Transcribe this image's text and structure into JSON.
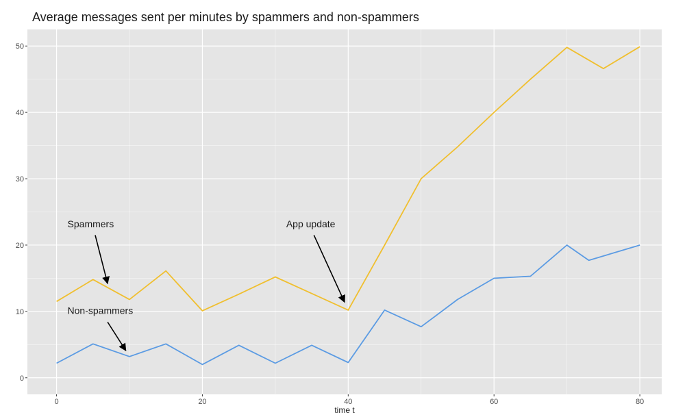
{
  "chart_data": {
    "type": "line",
    "title": "Average messages sent per minutes by spammers and non-spammers",
    "xlabel": "time t",
    "ylabel": "",
    "xlim": [
      -4,
      83
    ],
    "ylim": [
      -2.5,
      52.5
    ],
    "xticks": [
      0,
      20,
      40,
      60,
      80
    ],
    "yticks": [
      0,
      10,
      20,
      30,
      40,
      50
    ],
    "grid": true,
    "legend": "none",
    "panel_background": "#e5e5e5",
    "grid_color": "#ffffff",
    "series": [
      {
        "color": "#f0bf2f",
        "x": [
          0,
          5,
          10,
          15,
          20,
          25,
          30,
          35,
          40,
          45,
          50,
          55,
          60,
          65,
          70,
          75,
          80
        ],
        "values": [
          11.5,
          14.8,
          11.8,
          16.1,
          10.1,
          12.6,
          15.2,
          12.7,
          10.2,
          20.0,
          30.0,
          34.8,
          40.0,
          45.0,
          49.8,
          46.6,
          49.9
        ]
      },
      {
        "color": "#5b9be3",
        "x": [
          0,
          5,
          10,
          15,
          20,
          25,
          30,
          35,
          40,
          45,
          50,
          55,
          60,
          65,
          70,
          73,
          80
        ],
        "values": [
          2.2,
          5.1,
          3.2,
          5.1,
          2.0,
          4.9,
          2.2,
          4.9,
          2.3,
          10.2,
          7.7,
          11.8,
          15.0,
          15.3,
          20.0,
          17.7,
          20.0
        ]
      }
    ],
    "annotations": [
      {
        "text": "Spammers",
        "text_x": 1.5,
        "text_y": 22.7,
        "arrow_from": [
          5.3,
          21.5
        ],
        "arrow_to": [
          7,
          14.2
        ]
      },
      {
        "text": "App update",
        "text_x": 31.5,
        "text_y": 22.7,
        "arrow_from": [
          35.3,
          21.5
        ],
        "arrow_to": [
          39.5,
          11.4
        ]
      },
      {
        "text": "Non-spammers",
        "text_x": 1.5,
        "text_y": 9.6,
        "arrow_from": [
          7,
          8.4
        ],
        "arrow_to": [
          9.5,
          4.1
        ]
      }
    ]
  }
}
